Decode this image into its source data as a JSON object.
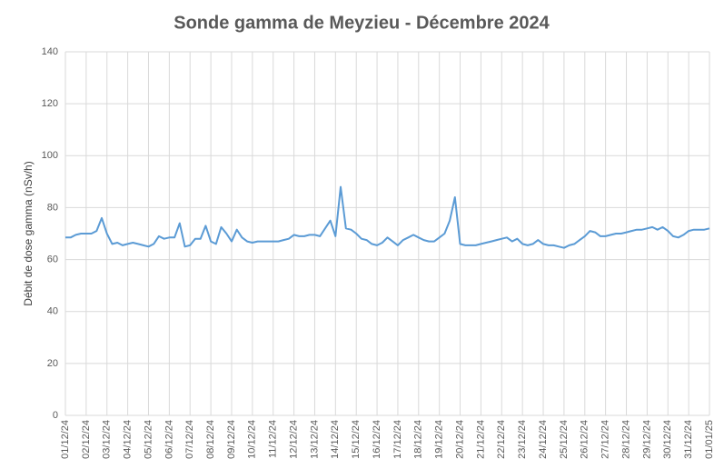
{
  "chart_data": {
    "type": "line",
    "title": "Sonde gamma de Meyzieu - Décembre 2024",
    "y_label": "Débit de dose gamma (nSv/h)",
    "categories": [
      "01/12/24",
      null,
      null,
      null,
      "02/12/24",
      null,
      null,
      null,
      "03/12/24",
      null,
      null,
      null,
      "04/12/24",
      null,
      null,
      null,
      "05/12/24",
      null,
      null,
      null,
      "06/12/24",
      null,
      null,
      null,
      "07/12/24",
      null,
      null,
      null,
      "08/12/24",
      null,
      null,
      null,
      "09/12/24",
      null,
      null,
      null,
      "10/12/24",
      null,
      null,
      null,
      "11/12/24",
      null,
      null,
      null,
      "12/12/24",
      null,
      null,
      null,
      "13/12/24",
      null,
      null,
      null,
      "14/12/24",
      null,
      null,
      null,
      "15/12/24",
      null,
      null,
      null,
      "16/12/24",
      null,
      null,
      null,
      "17/12/24",
      null,
      null,
      null,
      "18/12/24",
      null,
      null,
      null,
      "19/12/24",
      null,
      null,
      null,
      "20/12/24",
      null,
      null,
      null,
      "21/12/24",
      null,
      null,
      null,
      "22/12/24",
      null,
      null,
      null,
      "23/12/24",
      null,
      null,
      null,
      "24/12/24",
      null,
      null,
      null,
      "25/12/24",
      null,
      null,
      null,
      "26/12/24",
      null,
      null,
      null,
      "27/12/24",
      null,
      null,
      null,
      "28/12/24",
      null,
      null,
      null,
      "29/12/24",
      null,
      null,
      null,
      "30/12/24",
      null,
      null,
      null,
      "31/12/24",
      null,
      null,
      null,
      "01/01/25"
    ],
    "series": [
      {
        "name": "Débit de dose gamma",
        "color": "#5b9bd5",
        "values": [
          68.5,
          68.5,
          69.5,
          70,
          70,
          70,
          71,
          76,
          70,
          66,
          66.5,
          65.5,
          66,
          66.5,
          66,
          65.5,
          65,
          66,
          69,
          68,
          68.5,
          68.5,
          74,
          65,
          65.5,
          68,
          68,
          73,
          67,
          66,
          72.5,
          70,
          67,
          71.5,
          68.5,
          67,
          66.5,
          67,
          67,
          67,
          67,
          67,
          67.5,
          68,
          69.5,
          69,
          69,
          69.5,
          69.5,
          69,
          72,
          75,
          69,
          88,
          72,
          71.5,
          70,
          68,
          67.5,
          66,
          65.5,
          66.5,
          68.5,
          67,
          65.5,
          67.5,
          68.5,
          69.5,
          68.5,
          67.5,
          67,
          67,
          68.5,
          70,
          75,
          84,
          66,
          65.5,
          65.5,
          65.5,
          66,
          66.5,
          67,
          67.5,
          68,
          68.5,
          67,
          68,
          66,
          65.5,
          66,
          67.5,
          66,
          65.5,
          65.5,
          65,
          64.5,
          65.5,
          66,
          67.5,
          69,
          71,
          70.5,
          69,
          69,
          69.5,
          70,
          70,
          70.5,
          71,
          71.5,
          71.5,
          72,
          72.5,
          71.5,
          72.5,
          71,
          69,
          68.5,
          69.5,
          71,
          71.5,
          71.5,
          71.5,
          72
        ]
      }
    ],
    "ylim": [
      0,
      140
    ],
    "yticks": [
      0,
      20,
      40,
      60,
      80,
      100,
      120,
      140
    ],
    "grid": true
  }
}
